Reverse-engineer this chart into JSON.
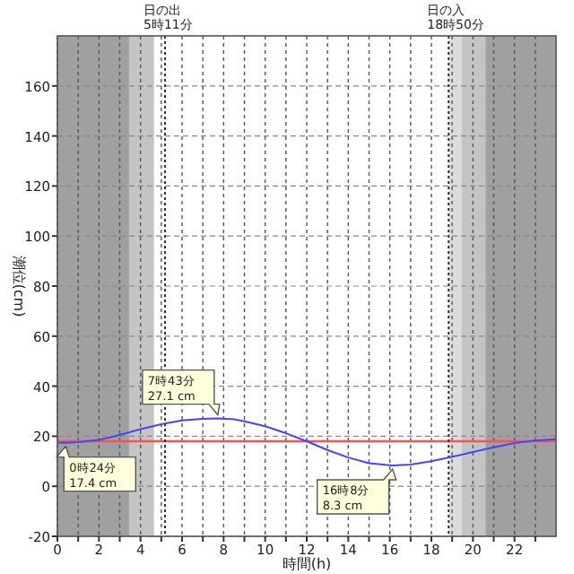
{
  "chart_data": {
    "type": "line",
    "xlabel": "時間(h)",
    "ylabel": "潮位(cm)",
    "xlim": [
      0,
      24
    ],
    "ylim": [
      -20,
      180
    ],
    "xticks": [
      0,
      {
        "value": 1,
        "label": null
      },
      2,
      {
        "value": 3,
        "label": null
      },
      4,
      {
        "value": 5,
        "label": null
      },
      6,
      {
        "value": 7,
        "label": null
      },
      8,
      {
        "value": 9,
        "label": null
      },
      10,
      {
        "value": 11,
        "label": null
      },
      12,
      {
        "value": 13,
        "label": null
      },
      14,
      {
        "value": 15,
        "label": null
      },
      16,
      {
        "value": 17,
        "label": null
      },
      18,
      {
        "value": 19,
        "label": null
      },
      20,
      {
        "value": 21,
        "label": null
      },
      22,
      {
        "value": 23,
        "label": null
      }
    ],
    "yticks": [
      -20,
      0,
      20,
      40,
      60,
      80,
      100,
      120,
      140,
      160
    ],
    "grid": true,
    "marker": "none",
    "line_style": "solid",
    "x": [
      0,
      0.4,
      1,
      2,
      3,
      4,
      5,
      6,
      7,
      7.72,
      8.5,
      9,
      10,
      11,
      12,
      13,
      14,
      15,
      16.13,
      17,
      18,
      19,
      20,
      21,
      22,
      23,
      24
    ],
    "series": [
      {
        "color": "#4444ff",
        "values": [
          17.5,
          17.4,
          17.6,
          18.5,
          20.5,
          22.8,
          24.8,
          26.3,
          27,
          27.1,
          26.8,
          26,
          24,
          21.2,
          18,
          14.5,
          11.5,
          9.2,
          8.3,
          8.7,
          10,
          11.8,
          13.7,
          15.6,
          17.3,
          18.3,
          18.8
        ]
      }
    ],
    "bands": [
      {
        "axis": "x",
        "from": 0,
        "to": 3.45,
        "color": "#a0a0a0"
      },
      {
        "axis": "x",
        "from": 3.45,
        "to": 4.65,
        "color": "#c4c4c4"
      },
      {
        "axis": "x",
        "from": 18.85,
        "to": 19.45,
        "color": "#dcdcdc"
      },
      {
        "axis": "x",
        "from": 19.45,
        "to": 20.6,
        "color": "#c4c4c4"
      },
      {
        "axis": "x",
        "from": 20.6,
        "to": 24,
        "color": "#a0a0a0"
      }
    ],
    "ref_lines": [
      {
        "axis": "y",
        "value": 18,
        "color": "#ff5050",
        "line_style": "solid"
      },
      {
        "axis": "x",
        "value": 5.18,
        "label": "日の出\n5時11分",
        "color": "#333333",
        "line_style": "dotted"
      },
      {
        "axis": "x",
        "value": 18.83,
        "label": "日の入\n18時50分",
        "color": "#333333",
        "line_style": "dotted"
      }
    ],
    "annotations": [
      {
        "text": "0時24分\n17.4 cm",
        "x": 0.4,
        "y": 17.4
      },
      {
        "text": "7時43分\n27.1 cm",
        "x": 7.72,
        "y": 27.1
      },
      {
        "text": "16時8分\n8.3 cm",
        "x": 16.13,
        "y": 8.3
      }
    ]
  }
}
